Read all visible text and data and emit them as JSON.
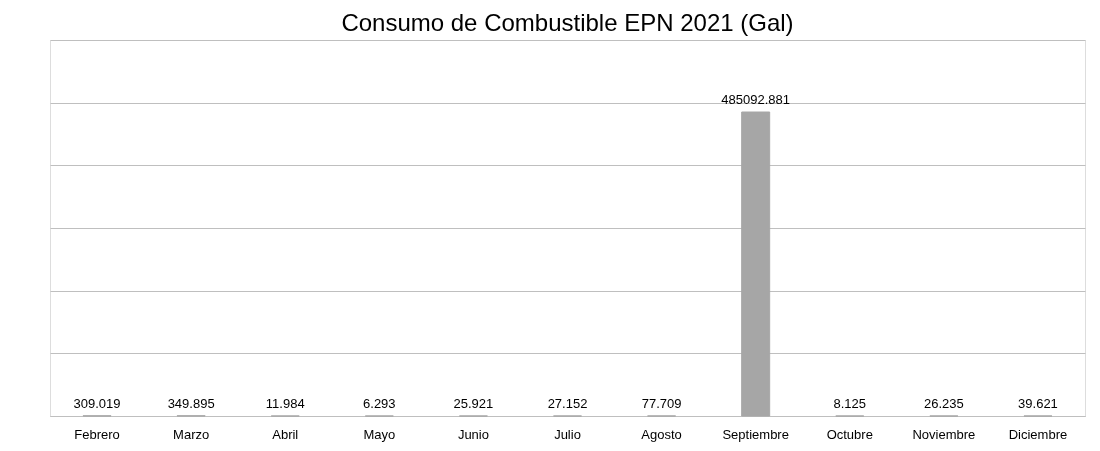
{
  "chart_data": {
    "type": "bar",
    "title": "Consumo de Combustible EPN 2021 (Gal)",
    "categories": [
      "Febrero",
      "Marzo",
      "Abril",
      "Mayo",
      "Junio",
      "Julio",
      "Agosto",
      "Septiembre",
      "Octubre",
      "Noviembre",
      "Diciembre"
    ],
    "values": [
      309.019,
      349.895,
      11.984,
      6.293,
      25.921,
      27.152,
      77.709,
      485092.881,
      8.125,
      26.235,
      39.621
    ],
    "color": "#a6a6a6",
    "ylim": [
      0,
      600000
    ],
    "yticks": [
      {
        "value": 0,
        "label": null
      },
      {
        "value": 100000,
        "label": null
      },
      {
        "value": 200000,
        "label": null
      },
      {
        "value": 300000,
        "label": null
      },
      {
        "value": 400000,
        "label": null
      },
      {
        "value": 500000,
        "label": null
      },
      {
        "value": 600000,
        "label": null
      }
    ],
    "tick_labels": "x",
    "grid": "y",
    "data_labels": true
  }
}
